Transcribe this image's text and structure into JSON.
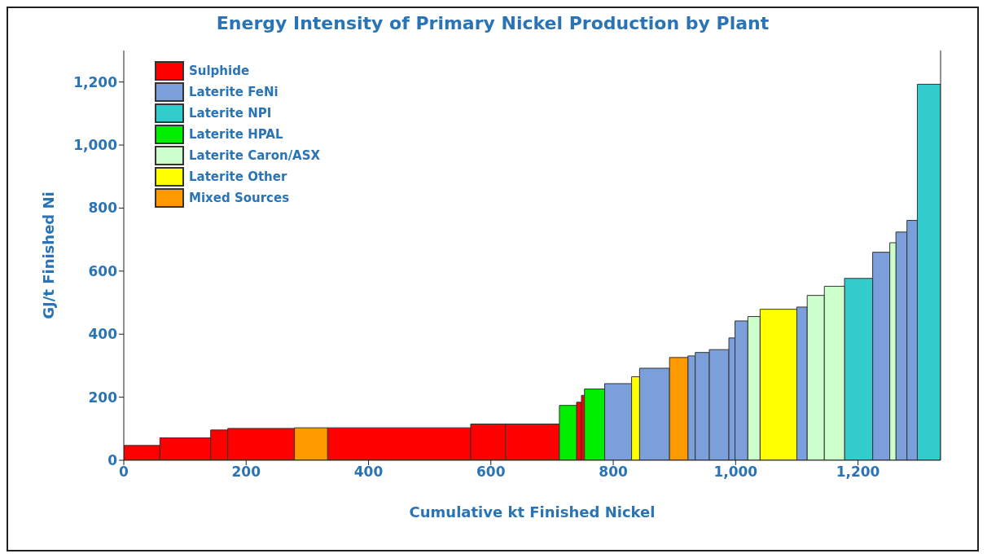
{
  "chart_data": {
    "type": "histogram",
    "title": "Energy Intensity of Primary Nickel Production by Plant",
    "xlabel": "Cumulative kt Finished Nickel",
    "ylabel": "GJ/t Finished Ni",
    "bins": [
      0,
      59,
      142,
      170,
      279,
      333,
      567,
      624,
      712,
      740,
      748,
      753,
      786,
      830,
      843,
      892,
      922,
      934,
      957,
      989,
      999,
      1020,
      1040,
      1100,
      1117,
      1145,
      1178,
      1224,
      1252,
      1262,
      1280,
      1297,
      1335
    ],
    "series": [
      {
        "name": "Sulphide",
        "color": "#ff0000",
        "values": [
          47,
          71,
          96,
          101,
          null,
          103,
          115,
          115,
          null,
          184,
          206,
          null,
          null,
          null,
          null,
          null,
          null,
          null,
          null,
          null,
          null,
          null,
          null,
          null,
          null,
          null,
          null,
          null,
          null,
          null,
          null,
          null
        ]
      },
      {
        "name": "Laterite FeNi",
        "color": "#7b9fdb",
        "values": [
          null,
          null,
          null,
          null,
          null,
          null,
          null,
          null,
          null,
          null,
          null,
          null,
          243,
          null,
          292,
          null,
          331,
          342,
          351,
          388,
          442,
          null,
          null,
          486,
          null,
          null,
          null,
          660,
          null,
          724,
          761,
          null
        ]
      },
      {
        "name": "Laterite NPI",
        "color": "#33cccc",
        "values": [
          null,
          null,
          null,
          null,
          null,
          null,
          null,
          null,
          null,
          null,
          null,
          null,
          null,
          null,
          null,
          null,
          null,
          null,
          null,
          null,
          null,
          null,
          null,
          null,
          null,
          null,
          577,
          null,
          null,
          null,
          null,
          1193
        ]
      },
      {
        "name": "Laterite HPAL",
        "color": "#00ee00",
        "values": [
          null,
          null,
          null,
          null,
          null,
          null,
          null,
          null,
          174,
          null,
          null,
          226,
          null,
          null,
          null,
          null,
          null,
          null,
          null,
          null,
          null,
          null,
          null,
          null,
          null,
          null,
          null,
          null,
          null,
          null,
          null,
          null
        ]
      },
      {
        "name": "Laterite Caron/ASX",
        "color": "#ccffcc",
        "values": [
          null,
          null,
          null,
          null,
          null,
          null,
          null,
          null,
          null,
          null,
          null,
          null,
          null,
          null,
          null,
          null,
          null,
          null,
          null,
          null,
          null,
          456,
          null,
          null,
          523,
          552,
          null,
          null,
          690,
          null,
          null,
          null
        ]
      },
      {
        "name": "Laterite Other",
        "color": "#ffff00",
        "values": [
          null,
          null,
          null,
          null,
          null,
          null,
          null,
          null,
          null,
          null,
          null,
          null,
          null,
          265,
          null,
          null,
          null,
          null,
          null,
          null,
          null,
          null,
          479,
          null,
          null,
          null,
          null,
          null,
          null,
          null,
          null,
          null
        ]
      },
      {
        "name": "Mixed Sources",
        "color": "#ff9900",
        "values": [
          null,
          null,
          null,
          null,
          103,
          null,
          null,
          null,
          null,
          null,
          null,
          null,
          null,
          null,
          null,
          326,
          null,
          null,
          null,
          null,
          null,
          null,
          null,
          null,
          null,
          null,
          null,
          null,
          null,
          null,
          null,
          null
        ]
      }
    ],
    "xlim": [
      0,
      1335
    ],
    "xticks": [
      0,
      {
        "value": 200,
        "label": "200"
      },
      {
        "value": 400,
        "label": "400"
      },
      {
        "value": 600,
        "label": "600"
      },
      {
        "value": 800,
        "label": "800"
      },
      {
        "value": 1000,
        "label": "1,000"
      },
      {
        "value": 1200,
        "label": "1,200"
      }
    ],
    "ylim": [
      0,
      1300
    ],
    "yticks": [
      0,
      200,
      400,
      600,
      800,
      {
        "value": 1000,
        "label": "1,000"
      },
      {
        "value": 1200,
        "label": "1,200"
      }
    ],
    "legend": "top left"
  }
}
